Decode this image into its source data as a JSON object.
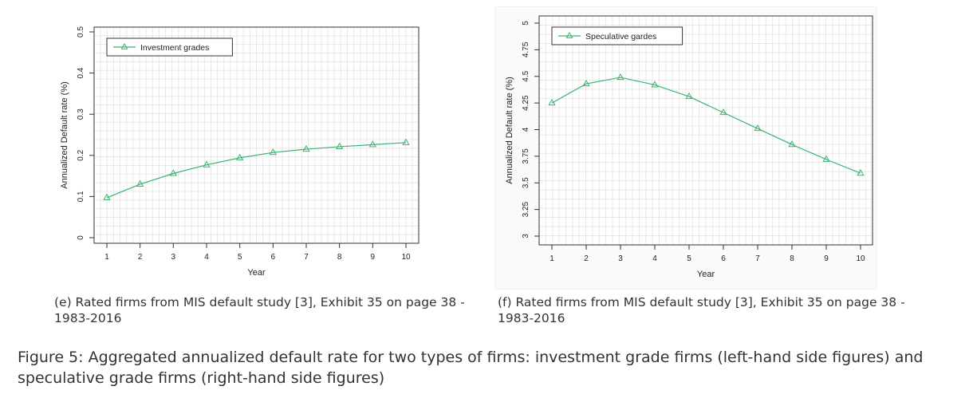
{
  "chart_data": [
    {
      "type": "line",
      "xlabel": "Year",
      "ylabel": "Annualized Default rate (%)",
      "x": [
        1,
        2,
        3,
        4,
        5,
        6,
        7,
        8,
        9,
        10
      ],
      "xticks": [
        "1",
        "2",
        "3",
        "4",
        "5",
        "6",
        "7",
        "8",
        "9",
        "10"
      ],
      "yticks": [
        "0",
        "0.1",
        "0.2",
        "0.3",
        "0.4",
        "0.5"
      ],
      "ylim": [
        0,
        0.5
      ],
      "grid": true,
      "legend_position": "top-left",
      "series": [
        {
          "name": "Investment grades",
          "color": "#3cb371",
          "marker": "triangle",
          "values": [
            0.097,
            0.13,
            0.156,
            0.177,
            0.194,
            0.207,
            0.215,
            0.221,
            0.226,
            0.231
          ]
        }
      ]
    },
    {
      "type": "line",
      "xlabel": "Year",
      "ylabel": "Annualized Default rate (%)",
      "x": [
        1,
        2,
        3,
        4,
        5,
        6,
        7,
        8,
        9,
        10
      ],
      "xticks": [
        "1",
        "2",
        "3",
        "4",
        "5",
        "6",
        "7",
        "8",
        "9",
        "10"
      ],
      "yticks": [
        "3",
        "3.25",
        "3.5",
        "3.75",
        "4",
        "4.25",
        "4.5",
        "4.75",
        "5"
      ],
      "ylim": [
        3,
        5
      ],
      "grid": true,
      "legend_position": "top-left",
      "series": [
        {
          "name": "Speculative gardes",
          "color": "#3cb371",
          "marker": "triangle",
          "values": [
            4.25,
            4.43,
            4.49,
            4.42,
            4.31,
            4.16,
            4.01,
            3.86,
            3.72,
            3.59
          ]
        }
      ]
    }
  ],
  "captions": {
    "left": "(e) Rated firms from MIS default study [3], Exhibit 35 on page 38 - 1983-2016",
    "right": "(f) Rated firms from MIS default study [3], Exhibit 35 on page 38 - 1983-2016",
    "figure": "Figure 5: Aggregated annualized default rate for two types of firms: investment grade firms (left-hand side figures) and speculative grade firms (right-hand side figures)"
  }
}
